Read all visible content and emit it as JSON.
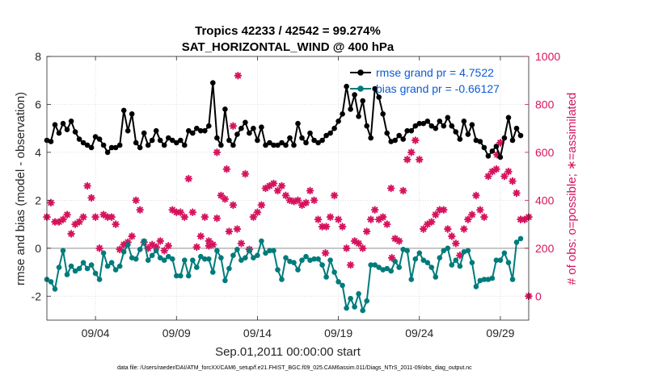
{
  "chart_data": {
    "type": "line",
    "title": "Tropics 42233 / 42542 = 99.274%",
    "subtitle": "SAT_HORIZONTAL_WIND @ 400 hPa",
    "xlabel": "Sep.01,2011 00:00:00 start",
    "ylabel_left": "rmse and bias (model - observation)",
    "ylabel_right": "# of obs: o=possible; ∗=assimilated",
    "footnote": "data file: /Users/raeder/DAI/ATM_forcXX/CAM6_setup/f.e21.FHIST_BGC.f09_025.CAM6assim.011/Diags_NTrS_2011-09/obs_diag_output.nc",
    "x_ticks": [
      "09/04",
      "09/09",
      "09/14",
      "09/19",
      "09/24",
      "09/29"
    ],
    "x_tick_days": [
      4,
      9,
      14,
      19,
      24,
      29
    ],
    "xlim_days": [
      1.0,
      30.75
    ],
    "ylim_left": [
      -3,
      8
    ],
    "yticks_left": [
      "-2",
      "0",
      "2",
      "4",
      "6",
      "8"
    ],
    "ylim_right": [
      -100,
      1000
    ],
    "yticks_right": [
      "0",
      "200",
      "400",
      "600",
      "800",
      "1000"
    ],
    "zero_line": 0,
    "legend_position": "top-right",
    "colors": {
      "rmse": "#000000",
      "bias": "#007b7b",
      "obs": "#d6135d",
      "zero": "#b3b3b3",
      "legend_text": "#0a5bd6"
    },
    "series": [
      {
        "name": "rmse grand pr = 4.7522",
        "axis": "left",
        "x_day_start": 1.0,
        "x_day_step": 0.25,
        "values": [
          4.5,
          4.45,
          5.15,
          4.8,
          5.2,
          4.95,
          5.3,
          4.85,
          4.55,
          4.4,
          4.3,
          4.2,
          4.65,
          4.55,
          4.3,
          4.0,
          4.2,
          4.2,
          4.3,
          5.75,
          4.9,
          5.6,
          4.4,
          4.2,
          4.8,
          4.3,
          4.5,
          4.9,
          4.5,
          4.3,
          4.6,
          4.5,
          4.4,
          4.5,
          4.3,
          4.9,
          4.8,
          5.0,
          4.9,
          4.9,
          5.1,
          6.9,
          4.6,
          4.3,
          5.8,
          4.5,
          4.3,
          4.75,
          5.0,
          5.25,
          4.8,
          5.0,
          4.5,
          5.05,
          4.3,
          4.4,
          4.3,
          4.3,
          4.4,
          4.3,
          4.6,
          4.3,
          5.2,
          4.6,
          4.4,
          4.8,
          4.5,
          4.4,
          4.5,
          4.7,
          4.8,
          5.0,
          5.3,
          5.6,
          6.75,
          5.8,
          6.4,
          5.5,
          6.15,
          5.1,
          4.6,
          6.65,
          6.3,
          5.6,
          4.8,
          4.45,
          4.5,
          4.7,
          4.55,
          4.9,
          4.9,
          5.1,
          5.2,
          5.2,
          5.3,
          5.1,
          5.0,
          5.3,
          5.1,
          5.45,
          5.1,
          4.85,
          4.55,
          5.3,
          4.75,
          5.15,
          4.5,
          4.45,
          4.2,
          3.85,
          4.05,
          4.25,
          3.8,
          4.6,
          5.45,
          4.5,
          5.0,
          4.7
        ]
      },
      {
        "name": "bias grand pr = -0.66127",
        "axis": "left",
        "x_day_start": 1.0,
        "x_day_step": 0.25,
        "values": [
          -1.3,
          -1.4,
          -1.7,
          -0.8,
          -0.1,
          -1.1,
          -0.75,
          -0.95,
          -0.85,
          -0.6,
          -0.85,
          -0.7,
          -1.05,
          -1.3,
          -0.2,
          -0.75,
          -0.6,
          -0.9,
          -0.75,
          -0.15,
          0.15,
          -0.4,
          -0.45,
          -0.05,
          0.3,
          -0.5,
          -0.3,
          -0.1,
          -0.4,
          -0.5,
          -0.35,
          -0.45,
          -1.15,
          -1.15,
          -0.5,
          -1.15,
          -0.5,
          -0.8,
          -0.35,
          -0.45,
          -0.45,
          -1.0,
          -0.1,
          -0.4,
          -1.35,
          -0.85,
          -0.3,
          -0.05,
          -0.5,
          -0.4,
          -0.1,
          -0.4,
          -0.3,
          0.3,
          -0.2,
          -0.1,
          -0.1,
          -0.9,
          -1.3,
          -0.4,
          -0.55,
          -0.6,
          -0.9,
          -0.5,
          -0.35,
          -0.5,
          -0.45,
          -0.45,
          -0.7,
          -1.2,
          -0.5,
          -1.0,
          -1.4,
          -1.55,
          -2.5,
          -2.1,
          -2.45,
          -1.9,
          -2.6,
          -2.2,
          -0.7,
          -0.7,
          -0.8,
          -0.9,
          -0.85,
          -0.95,
          -0.55,
          -0.8,
          -0.05,
          -0.1,
          -1.3,
          -0.45,
          -0.2,
          -0.5,
          -0.6,
          -0.8,
          -1.2,
          -0.4,
          -0.1,
          0.0,
          -0.7,
          -0.5,
          -0.75,
          -0.15,
          -0.1,
          -0.6,
          -1.6,
          -1.35,
          -1.3,
          -1.3,
          -1.25,
          -0.5,
          -0.5,
          -0.2,
          -0.6,
          -1.3,
          0.25,
          0.4
        ]
      },
      {
        "name": "# of obs assimilated",
        "axis": "right",
        "x_day_start": 1.0,
        "x_day_step": 0.25,
        "values": [
          330,
          390,
          310,
          310,
          320,
          340,
          260,
          300,
          310,
          330,
          460,
          410,
          330,
          200,
          340,
          330,
          330,
          300,
          195,
          215,
          225,
          250,
          400,
          360,
          225,
          200,
          215,
          205,
          230,
          190,
          210,
          360,
          350,
          350,
          330,
          490,
          350,
          205,
          250,
          330,
          230,
          215,
          325,
          420,
          405,
          270,
          380,
          280,
          220,
          510,
          195,
          330,
          350,
          380,
          450,
          460,
          470,
          440,
          460,
          420,
          400,
          395,
          400,
          380,
          390,
          440,
          400,
          320,
          290,
          290,
          330,
          420,
          320,
          290,
          200,
          130,
          230,
          220,
          200,
          270,
          320,
          360,
          320,
          330,
          300,
          450,
          240,
          230,
          440,
          570,
          600,
          650,
          570,
          280,
          300,
          310,
          340,
          360,
          360,
          280,
          250,
          220,
          170,
          280,
          320,
          340,
          420,
          360,
          330,
          500,
          520,
          530,
          640,
          500,
          520,
          480,
          430,
          320,
          320,
          330
        ]
      }
    ],
    "extra_obs_points": [
      {
        "day": 12.8,
        "value": 920
      },
      {
        "day": 12.5,
        "value": 710
      },
      {
        "day": 11.5,
        "value": 600
      },
      {
        "day": 12.1,
        "value": 530
      },
      {
        "day": 11.0,
        "value": 210
      },
      {
        "day": 28.8,
        "value": 590
      },
      {
        "day": 29.0,
        "value": 640
      },
      {
        "day": 18.2,
        "value": 180
      },
      {
        "day": 22.3,
        "value": 160
      },
      {
        "day": 30.75,
        "value": 0
      }
    ]
  }
}
